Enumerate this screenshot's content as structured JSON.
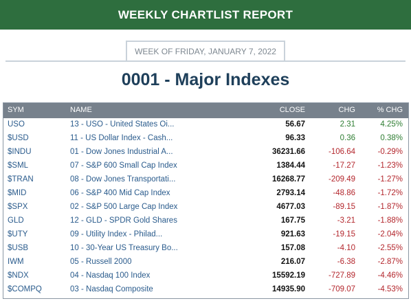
{
  "banner": {
    "title": "WEEKLY CHARTLIST REPORT"
  },
  "week": {
    "label": "WEEK OF FRIDAY, JANUARY 7, 2022"
  },
  "heading": {
    "title": "0001 - Major Indexes"
  },
  "colors": {
    "banner": "#2e6e3e",
    "header": "#77818c",
    "positive": "#2e7d32",
    "negative": "#b3262c",
    "link": "#2a5b8c"
  },
  "table": {
    "columns": {
      "sym": "SYM",
      "name": "NAME",
      "close": "CLOSE",
      "chg": "CHG",
      "pct": "% CHG"
    },
    "rows": [
      {
        "sym": "USO",
        "name": "13 - USO - United States Oi...",
        "close": "56.67",
        "chg": "2.31",
        "pct": "4.25%",
        "dir": "pos"
      },
      {
        "sym": "$USD",
        "name": "11 - US Dollar Index - Cash...",
        "close": "96.33",
        "chg": "0.36",
        "pct": "0.38%",
        "dir": "pos"
      },
      {
        "sym": "$INDU",
        "name": "01 - Dow Jones Industrial A...",
        "close": "36231.66",
        "chg": "-106.64",
        "pct": "-0.29%",
        "dir": "neg"
      },
      {
        "sym": "$SML",
        "name": "07 - S&P 600 Small Cap Index",
        "close": "1384.44",
        "chg": "-17.27",
        "pct": "-1.23%",
        "dir": "neg"
      },
      {
        "sym": "$TRAN",
        "name": "08 - Dow Jones Transportati...",
        "close": "16268.77",
        "chg": "-209.49",
        "pct": "-1.27%",
        "dir": "neg"
      },
      {
        "sym": "$MID",
        "name": "06 - S&P 400 Mid Cap Index",
        "close": "2793.14",
        "chg": "-48.86",
        "pct": "-1.72%",
        "dir": "neg"
      },
      {
        "sym": "$SPX",
        "name": "02 - S&P 500 Large Cap Index",
        "close": "4677.03",
        "chg": "-89.15",
        "pct": "-1.87%",
        "dir": "neg"
      },
      {
        "sym": "GLD",
        "name": "12 - GLD - SPDR Gold Shares",
        "close": "167.75",
        "chg": "-3.21",
        "pct": "-1.88%",
        "dir": "neg"
      },
      {
        "sym": "$UTY",
        "name": "09 - Utility Index - Philad...",
        "close": "921.63",
        "chg": "-19.15",
        "pct": "-2.04%",
        "dir": "neg"
      },
      {
        "sym": "$USB",
        "name": "10 - 30-Year US Treasury Bo...",
        "close": "157.08",
        "chg": "-4.10",
        "pct": "-2.55%",
        "dir": "neg"
      },
      {
        "sym": "IWM",
        "name": "05 - Russell 2000",
        "close": "216.07",
        "chg": "-6.38",
        "pct": "-2.87%",
        "dir": "neg"
      },
      {
        "sym": "$NDX",
        "name": "04 - Nasdaq 100 Index",
        "close": "15592.19",
        "chg": "-727.89",
        "pct": "-4.46%",
        "dir": "neg"
      },
      {
        "sym": "$COMPQ",
        "name": "03 - Nasdaq Composite",
        "close": "14935.90",
        "chg": "-709.07",
        "pct": "-4.53%",
        "dir": "neg"
      }
    ]
  }
}
